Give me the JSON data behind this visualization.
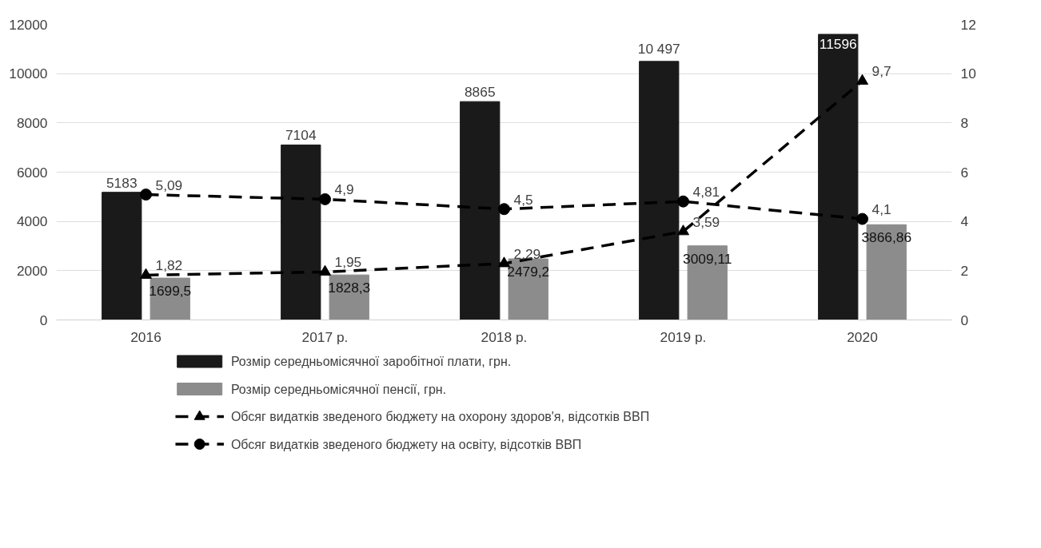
{
  "chart_data": {
    "type": "bar",
    "categories": [
      "2016",
      "2017 р.",
      "2018 р.",
      "2019 р.",
      "2020"
    ],
    "series": [
      {
        "name": "Розмір середньомісячної заробітної плати, грн.",
        "color": "#1a1a1a",
        "values": [
          5183,
          7104,
          8865,
          10497,
          11596
        ],
        "value_labels": [
          "5183",
          "7104",
          "8865",
          "10 497",
          "11596"
        ]
      },
      {
        "name": "Розмір середньомісячної пенсії, грн.",
        "color": "#8c8c8c",
        "values": [
          1699.5,
          1828.3,
          2479.2,
          3009.11,
          3866.86
        ],
        "value_labels": [
          "1699,5",
          "1828,3",
          "2479,2",
          "3009,11",
          "3866,86"
        ]
      },
      {
        "name": "Обсяг видатків зведеного бюджету на охорону здоров'я, відсотків ВВП",
        "type": "line",
        "axis": "y2",
        "color": "#000000",
        "marker": "triangle",
        "line_style": "dashed",
        "values": [
          1.82,
          1.95,
          2.29,
          3.59,
          9.7
        ],
        "value_labels": [
          "1,82",
          "1,95",
          "2,29",
          "3,59",
          "9,7"
        ]
      },
      {
        "name": "Обсяг видатків зведеного бюджету на освіту, відсотків ВВП",
        "type": "line",
        "axis": "y2",
        "color": "#000000",
        "marker": "circle",
        "line_style": "dashed",
        "values": [
          5.09,
          4.9,
          4.5,
          4.81,
          4.1
        ],
        "value_labels": [
          "5,09",
          "4,9",
          "4,5",
          "4,81",
          "4,1"
        ]
      }
    ],
    "ylim": [
      0,
      12000
    ],
    "yticks": [
      0,
      2000,
      4000,
      6000,
      8000,
      10000,
      12000
    ],
    "y2lim": [
      0,
      12
    ],
    "y2ticks": [
      0,
      2,
      4,
      6,
      8,
      10,
      12
    ],
    "grid": "y",
    "legend": "bottom"
  }
}
